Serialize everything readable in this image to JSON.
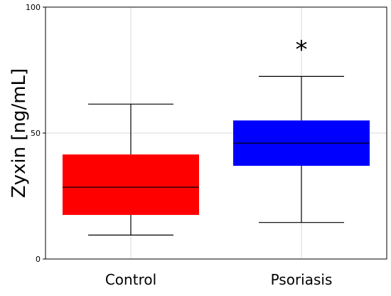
{
  "chart_data": {
    "type": "box",
    "title": "",
    "xlabel": "",
    "ylabel": "Zyxin [ng/mL]",
    "ylim": [
      0,
      100
    ],
    "yticks": [
      0,
      50,
      100
    ],
    "grid": true,
    "categories": [
      "Control",
      "Psoriasis"
    ],
    "boxes": [
      {
        "category": "Control",
        "whisker_low": 9.5,
        "q1": 17.5,
        "median": 28.5,
        "q3": 41.5,
        "whisker_high": 61.5,
        "color": "#ff0000"
      },
      {
        "category": "Psoriasis",
        "whisker_low": 14.5,
        "q1": 37.0,
        "median": 46.0,
        "q3": 55.0,
        "whisker_high": 72.5,
        "color": "#0000ff"
      }
    ],
    "annotations": [
      {
        "text": "*",
        "category": "Psoriasis",
        "y": 85
      }
    ]
  }
}
